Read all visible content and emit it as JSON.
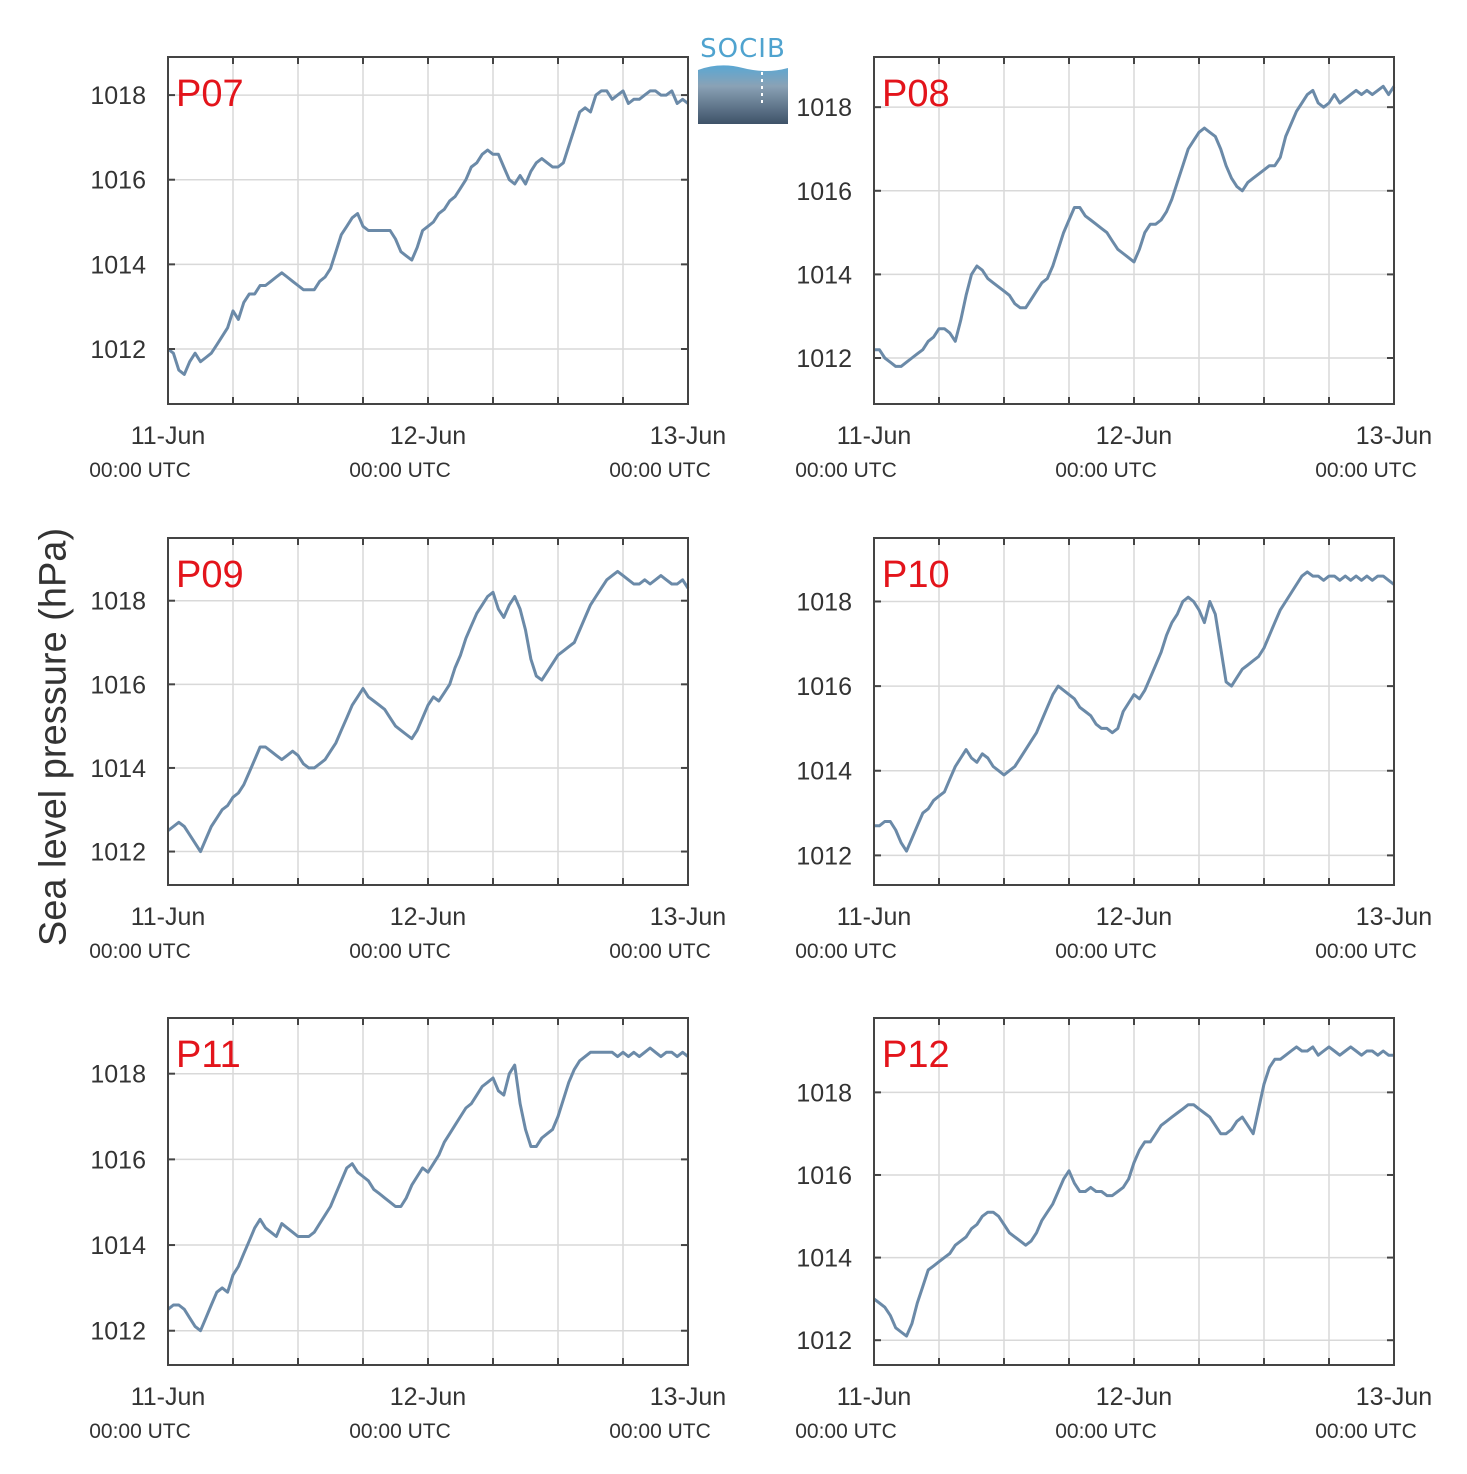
{
  "figure": {
    "ylabel": "Sea level pressure (hPa)",
    "logo_text": "SOCIB"
  },
  "colors": {
    "line": "#6b8aa8",
    "panel_label": "#e3141b",
    "grid": "#d9d9d9",
    "axis": "#444444",
    "tick_text": "#333333"
  },
  "chart_data": [
    {
      "type": "line",
      "label": "P07",
      "xticks": [
        "11-Jun",
        "12-Jun",
        "13-Jun"
      ],
      "xticks_sub": [
        "00:00 UTC",
        "00:00 UTC",
        "00:00 UTC"
      ],
      "xlim": [
        0,
        48
      ],
      "ylim": [
        1010.7,
        1018.9
      ],
      "yticks": [
        1012,
        1014,
        1016,
        1018
      ],
      "x": [
        0,
        0.5,
        1,
        1.5,
        2,
        2.5,
        3,
        3.5,
        4,
        4.5,
        5,
        5.5,
        6,
        6.5,
        7,
        7.5,
        8,
        8.5,
        9,
        9.5,
        10,
        10.5,
        11,
        11.5,
        12,
        12.5,
        13,
        13.5,
        14,
        14.5,
        15,
        15.5,
        16,
        16.5,
        17,
        17.5,
        18,
        18.5,
        19,
        19.5,
        20,
        20.5,
        21,
        21.5,
        22,
        22.5,
        23,
        23.5,
        24,
        24.5,
        25,
        25.5,
        26,
        26.5,
        27,
        27.5,
        28,
        28.5,
        29,
        29.5,
        30,
        30.5,
        31,
        31.5,
        32,
        32.5,
        33,
        33.5,
        34,
        34.5,
        35,
        35.5,
        36,
        36.5,
        37,
        37.5,
        38,
        38.5,
        39,
        39.5,
        40,
        40.5,
        41,
        41.5,
        42,
        42.5,
        43,
        43.5,
        44,
        44.5,
        45,
        45.5,
        46,
        46.5,
        47,
        47.5,
        48
      ],
      "y": [
        1012.0,
        1011.9,
        1011.5,
        1011.4,
        1011.7,
        1011.9,
        1011.7,
        1011.8,
        1011.9,
        1012.1,
        1012.3,
        1012.5,
        1012.9,
        1012.7,
        1013.1,
        1013.3,
        1013.3,
        1013.5,
        1013.5,
        1013.6,
        1013.7,
        1013.8,
        1013.7,
        1013.6,
        1013.5,
        1013.4,
        1013.4,
        1013.4,
        1013.6,
        1013.7,
        1013.9,
        1014.3,
        1014.7,
        1014.9,
        1015.1,
        1015.2,
        1014.9,
        1014.8,
        1014.8,
        1014.8,
        1014.8,
        1014.8,
        1014.6,
        1014.3,
        1014.2,
        1014.1,
        1014.4,
        1014.8,
        1014.9,
        1015.0,
        1015.2,
        1015.3,
        1015.5,
        1015.6,
        1015.8,
        1016.0,
        1016.3,
        1016.4,
        1016.6,
        1016.7,
        1016.6,
        1016.6,
        1016.3,
        1016.0,
        1015.9,
        1016.1,
        1015.9,
        1016.2,
        1016.4,
        1016.5,
        1016.4,
        1016.3,
        1016.3,
        1016.4,
        1016.8,
        1017.2,
        1017.6,
        1017.7,
        1017.6,
        1018.0,
        1018.1,
        1018.1,
        1017.9,
        1018.0,
        1018.1,
        1017.8,
        1017.9,
        1017.9,
        1018.0,
        1018.1,
        1018.1,
        1018.0,
        1018.0,
        1018.1,
        1017.8,
        1017.9,
        1017.8
      ]
    },
    {
      "type": "line",
      "label": "P08",
      "xticks": [
        "11-Jun",
        "12-Jun",
        "13-Jun"
      ],
      "xticks_sub": [
        "00:00 UTC",
        "00:00 UTC",
        "00:00 UTC"
      ],
      "xlim": [
        0,
        48
      ],
      "ylim": [
        1010.9,
        1019.2
      ],
      "yticks": [
        1012,
        1014,
        1016,
        1018
      ],
      "x": [
        0,
        0.5,
        1,
        1.5,
        2,
        2.5,
        3,
        3.5,
        4,
        4.5,
        5,
        5.5,
        6,
        6.5,
        7,
        7.5,
        8,
        8.5,
        9,
        9.5,
        10,
        10.5,
        11,
        11.5,
        12,
        12.5,
        13,
        13.5,
        14,
        14.5,
        15,
        15.5,
        16,
        16.5,
        17,
        17.5,
        18,
        18.5,
        19,
        19.5,
        20,
        20.5,
        21,
        21.5,
        22,
        22.5,
        23,
        23.5,
        24,
        24.5,
        25,
        25.5,
        26,
        26.5,
        27,
        27.5,
        28,
        28.5,
        29,
        29.5,
        30,
        30.5,
        31,
        31.5,
        32,
        32.5,
        33,
        33.5,
        34,
        34.5,
        35,
        35.5,
        36,
        36.5,
        37,
        37.5,
        38,
        38.5,
        39,
        39.5,
        40,
        40.5,
        41,
        41.5,
        42,
        42.5,
        43,
        43.5,
        44,
        44.5,
        45,
        45.5,
        46,
        46.5,
        47,
        47.5,
        48
      ],
      "y": [
        1012.2,
        1012.2,
        1012.0,
        1011.9,
        1011.8,
        1011.8,
        1011.9,
        1012.0,
        1012.1,
        1012.2,
        1012.4,
        1012.5,
        1012.7,
        1012.7,
        1012.6,
        1012.4,
        1012.9,
        1013.5,
        1014.0,
        1014.2,
        1014.1,
        1013.9,
        1013.8,
        1013.7,
        1013.6,
        1013.5,
        1013.3,
        1013.2,
        1013.2,
        1013.4,
        1013.6,
        1013.8,
        1013.9,
        1014.2,
        1014.6,
        1015.0,
        1015.3,
        1015.6,
        1015.6,
        1015.4,
        1015.3,
        1015.2,
        1015.1,
        1015.0,
        1014.8,
        1014.6,
        1014.5,
        1014.4,
        1014.3,
        1014.6,
        1015.0,
        1015.2,
        1015.2,
        1015.3,
        1015.5,
        1015.8,
        1016.2,
        1016.6,
        1017.0,
        1017.2,
        1017.4,
        1017.5,
        1017.4,
        1017.3,
        1017.0,
        1016.6,
        1016.3,
        1016.1,
        1016.0,
        1016.2,
        1016.3,
        1016.4,
        1016.5,
        1016.6,
        1016.6,
        1016.8,
        1017.3,
        1017.6,
        1017.9,
        1018.1,
        1018.3,
        1018.4,
        1018.1,
        1018.0,
        1018.1,
        1018.3,
        1018.1,
        1018.2,
        1018.3,
        1018.4,
        1018.3,
        1018.4,
        1018.3,
        1018.4,
        1018.5,
        1018.3,
        1018.5
      ]
    },
    {
      "type": "line",
      "label": "P09",
      "xticks": [
        "11-Jun",
        "12-Jun",
        "13-Jun"
      ],
      "xticks_sub": [
        "00:00 UTC",
        "00:00 UTC",
        "00:00 UTC"
      ],
      "xlim": [
        0,
        48
      ],
      "ylim": [
        1011.2,
        1019.5
      ],
      "yticks": [
        1012,
        1014,
        1016,
        1018
      ],
      "x": [
        0,
        0.5,
        1,
        1.5,
        2,
        2.5,
        3,
        3.5,
        4,
        4.5,
        5,
        5.5,
        6,
        6.5,
        7,
        7.5,
        8,
        8.5,
        9,
        9.5,
        10,
        10.5,
        11,
        11.5,
        12,
        12.5,
        13,
        13.5,
        14,
        14.5,
        15,
        15.5,
        16,
        16.5,
        17,
        17.5,
        18,
        18.5,
        19,
        19.5,
        20,
        20.5,
        21,
        21.5,
        22,
        22.5,
        23,
        23.5,
        24,
        24.5,
        25,
        25.5,
        26,
        26.5,
        27,
        27.5,
        28,
        28.5,
        29,
        29.5,
        30,
        30.5,
        31,
        31.5,
        32,
        32.5,
        33,
        33.5,
        34,
        34.5,
        35,
        35.5,
        36,
        36.5,
        37,
        37.5,
        38,
        38.5,
        39,
        39.5,
        40,
        40.5,
        41,
        41.5,
        42,
        42.5,
        43,
        43.5,
        44,
        44.5,
        45,
        45.5,
        46,
        46.5,
        47,
        47.5,
        48
      ],
      "y": [
        1012.5,
        1012.6,
        1012.7,
        1012.6,
        1012.4,
        1012.2,
        1012.0,
        1012.3,
        1012.6,
        1012.8,
        1013.0,
        1013.1,
        1013.3,
        1013.4,
        1013.6,
        1013.9,
        1014.2,
        1014.5,
        1014.5,
        1014.4,
        1014.3,
        1014.2,
        1014.3,
        1014.4,
        1014.3,
        1014.1,
        1014.0,
        1014.0,
        1014.1,
        1014.2,
        1014.4,
        1014.6,
        1014.9,
        1015.2,
        1015.5,
        1015.7,
        1015.9,
        1015.7,
        1015.6,
        1015.5,
        1015.4,
        1015.2,
        1015.0,
        1014.9,
        1014.8,
        1014.7,
        1014.9,
        1015.2,
        1015.5,
        1015.7,
        1015.6,
        1015.8,
        1016.0,
        1016.4,
        1016.7,
        1017.1,
        1017.4,
        1017.7,
        1017.9,
        1018.1,
        1018.2,
        1017.8,
        1017.6,
        1017.9,
        1018.1,
        1017.8,
        1017.3,
        1016.6,
        1016.2,
        1016.1,
        1016.3,
        1016.5,
        1016.7,
        1016.8,
        1016.9,
        1017.0,
        1017.3,
        1017.6,
        1017.9,
        1018.1,
        1018.3,
        1018.5,
        1018.6,
        1018.7,
        1018.6,
        1018.5,
        1018.4,
        1018.4,
        1018.5,
        1018.4,
        1018.5,
        1018.6,
        1018.5,
        1018.4,
        1018.4,
        1018.5,
        1018.3
      ]
    },
    {
      "type": "line",
      "label": "P10",
      "xticks": [
        "11-Jun",
        "12-Jun",
        "13-Jun"
      ],
      "xticks_sub": [
        "00:00 UTC",
        "00:00 UTC",
        "00:00 UTC"
      ],
      "xlim": [
        0,
        48
      ],
      "ylim": [
        1011.3,
        1019.5
      ],
      "yticks": [
        1012,
        1014,
        1016,
        1018
      ],
      "x": [
        0,
        0.5,
        1,
        1.5,
        2,
        2.5,
        3,
        3.5,
        4,
        4.5,
        5,
        5.5,
        6,
        6.5,
        7,
        7.5,
        8,
        8.5,
        9,
        9.5,
        10,
        10.5,
        11,
        11.5,
        12,
        12.5,
        13,
        13.5,
        14,
        14.5,
        15,
        15.5,
        16,
        16.5,
        17,
        17.5,
        18,
        18.5,
        19,
        19.5,
        20,
        20.5,
        21,
        21.5,
        22,
        22.5,
        23,
        23.5,
        24,
        24.5,
        25,
        25.5,
        26,
        26.5,
        27,
        27.5,
        28,
        28.5,
        29,
        29.5,
        30,
        30.5,
        31,
        31.5,
        32,
        32.5,
        33,
        33.5,
        34,
        34.5,
        35,
        35.5,
        36,
        36.5,
        37,
        37.5,
        38,
        38.5,
        39,
        39.5,
        40,
        40.5,
        41,
        41.5,
        42,
        42.5,
        43,
        43.5,
        44,
        44.5,
        45,
        45.5,
        46,
        46.5,
        47,
        47.5,
        48
      ],
      "y": [
        1012.7,
        1012.7,
        1012.8,
        1012.8,
        1012.6,
        1012.3,
        1012.1,
        1012.4,
        1012.7,
        1013.0,
        1013.1,
        1013.3,
        1013.4,
        1013.5,
        1013.8,
        1014.1,
        1014.3,
        1014.5,
        1014.3,
        1014.2,
        1014.4,
        1014.3,
        1014.1,
        1014.0,
        1013.9,
        1014.0,
        1014.1,
        1014.3,
        1014.5,
        1014.7,
        1014.9,
        1015.2,
        1015.5,
        1015.8,
        1016.0,
        1015.9,
        1015.8,
        1015.7,
        1015.5,
        1015.4,
        1015.3,
        1015.1,
        1015.0,
        1015.0,
        1014.9,
        1015.0,
        1015.4,
        1015.6,
        1015.8,
        1015.7,
        1015.9,
        1016.2,
        1016.5,
        1016.8,
        1017.2,
        1017.5,
        1017.7,
        1018.0,
        1018.1,
        1018.0,
        1017.8,
        1017.5,
        1018.0,
        1017.7,
        1016.9,
        1016.1,
        1016.0,
        1016.2,
        1016.4,
        1016.5,
        1016.6,
        1016.7,
        1016.9,
        1017.2,
        1017.5,
        1017.8,
        1018.0,
        1018.2,
        1018.4,
        1018.6,
        1018.7,
        1018.6,
        1018.6,
        1018.5,
        1018.6,
        1018.6,
        1018.5,
        1018.6,
        1018.5,
        1018.6,
        1018.5,
        1018.6,
        1018.5,
        1018.6,
        1018.6,
        1018.5,
        1018.4
      ]
    },
    {
      "type": "line",
      "label": "P11",
      "xticks": [
        "11-Jun",
        "12-Jun",
        "13-Jun"
      ],
      "xticks_sub": [
        "00:00 UTC",
        "00:00 UTC",
        "00:00 UTC"
      ],
      "xlim": [
        0,
        48
      ],
      "ylim": [
        1011.2,
        1019.3
      ],
      "yticks": [
        1012,
        1014,
        1016,
        1018
      ],
      "x": [
        0,
        0.5,
        1,
        1.5,
        2,
        2.5,
        3,
        3.5,
        4,
        4.5,
        5,
        5.5,
        6,
        6.5,
        7,
        7.5,
        8,
        8.5,
        9,
        9.5,
        10,
        10.5,
        11,
        11.5,
        12,
        12.5,
        13,
        13.5,
        14,
        14.5,
        15,
        15.5,
        16,
        16.5,
        17,
        17.5,
        18,
        18.5,
        19,
        19.5,
        20,
        20.5,
        21,
        21.5,
        22,
        22.5,
        23,
        23.5,
        24,
        24.5,
        25,
        25.5,
        26,
        26.5,
        27,
        27.5,
        28,
        28.5,
        29,
        29.5,
        30,
        30.5,
        31,
        31.5,
        32,
        32.5,
        33,
        33.5,
        34,
        34.5,
        35,
        35.5,
        36,
        36.5,
        37,
        37.5,
        38,
        38.5,
        39,
        39.5,
        40,
        40.5,
        41,
        41.5,
        42,
        42.5,
        43,
        43.5,
        44,
        44.5,
        45,
        45.5,
        46,
        46.5,
        47,
        47.5,
        48
      ],
      "y": [
        1012.5,
        1012.6,
        1012.6,
        1012.5,
        1012.3,
        1012.1,
        1012.0,
        1012.3,
        1012.6,
        1012.9,
        1013.0,
        1012.9,
        1013.3,
        1013.5,
        1013.8,
        1014.1,
        1014.4,
        1014.6,
        1014.4,
        1014.3,
        1014.2,
        1014.5,
        1014.4,
        1014.3,
        1014.2,
        1014.2,
        1014.2,
        1014.3,
        1014.5,
        1014.7,
        1014.9,
        1015.2,
        1015.5,
        1015.8,
        1015.9,
        1015.7,
        1015.6,
        1015.5,
        1015.3,
        1015.2,
        1015.1,
        1015.0,
        1014.9,
        1014.9,
        1015.1,
        1015.4,
        1015.6,
        1015.8,
        1015.7,
        1015.9,
        1016.1,
        1016.4,
        1016.6,
        1016.8,
        1017.0,
        1017.2,
        1017.3,
        1017.5,
        1017.7,
        1017.8,
        1017.9,
        1017.6,
        1017.5,
        1018.0,
        1018.2,
        1017.3,
        1016.7,
        1016.3,
        1016.3,
        1016.5,
        1016.6,
        1016.7,
        1017.0,
        1017.4,
        1017.8,
        1018.1,
        1018.3,
        1018.4,
        1018.5,
        1018.5,
        1018.5,
        1018.5,
        1018.5,
        1018.4,
        1018.5,
        1018.4,
        1018.5,
        1018.4,
        1018.5,
        1018.6,
        1018.5,
        1018.4,
        1018.5,
        1018.5,
        1018.4,
        1018.5,
        1018.4
      ]
    },
    {
      "type": "line",
      "label": "P12",
      "xticks": [
        "11-Jun",
        "12-Jun",
        "13-Jun"
      ],
      "xticks_sub": [
        "00:00 UTC",
        "00:00 UTC",
        "00:00 UTC"
      ],
      "xlim": [
        0,
        48
      ],
      "ylim": [
        1011.4,
        1019.8
      ],
      "yticks": [
        1012,
        1014,
        1016,
        1018
      ],
      "x": [
        0,
        0.5,
        1,
        1.5,
        2,
        2.5,
        3,
        3.5,
        4,
        4.5,
        5,
        5.5,
        6,
        6.5,
        7,
        7.5,
        8,
        8.5,
        9,
        9.5,
        10,
        10.5,
        11,
        11.5,
        12,
        12.5,
        13,
        13.5,
        14,
        14.5,
        15,
        15.5,
        16,
        16.5,
        17,
        17.5,
        18,
        18.5,
        19,
        19.5,
        20,
        20.5,
        21,
        21.5,
        22,
        22.5,
        23,
        23.5,
        24,
        24.5,
        25,
        25.5,
        26,
        26.5,
        27,
        27.5,
        28,
        28.5,
        29,
        29.5,
        30,
        30.5,
        31,
        31.5,
        32,
        32.5,
        33,
        33.5,
        34,
        34.5,
        35,
        35.5,
        36,
        36.5,
        37,
        37.5,
        38,
        38.5,
        39,
        39.5,
        40,
        40.5,
        41,
        41.5,
        42,
        42.5,
        43,
        43.5,
        44,
        44.5,
        45,
        45.5,
        46,
        46.5,
        47,
        47.5,
        48
      ],
      "y": [
        1013.0,
        1012.9,
        1012.8,
        1012.6,
        1012.3,
        1012.2,
        1012.1,
        1012.4,
        1012.9,
        1013.3,
        1013.7,
        1013.8,
        1013.9,
        1014.0,
        1014.1,
        1014.3,
        1014.4,
        1014.5,
        1014.7,
        1014.8,
        1015.0,
        1015.1,
        1015.1,
        1015.0,
        1014.8,
        1014.6,
        1014.5,
        1014.4,
        1014.3,
        1014.4,
        1014.6,
        1014.9,
        1015.1,
        1015.3,
        1015.6,
        1015.9,
        1016.1,
        1015.8,
        1015.6,
        1015.6,
        1015.7,
        1015.6,
        1015.6,
        1015.5,
        1015.5,
        1015.6,
        1015.7,
        1015.9,
        1016.3,
        1016.6,
        1016.8,
        1016.8,
        1017.0,
        1017.2,
        1017.3,
        1017.4,
        1017.5,
        1017.6,
        1017.7,
        1017.7,
        1017.6,
        1017.5,
        1017.4,
        1017.2,
        1017.0,
        1017.0,
        1017.1,
        1017.3,
        1017.4,
        1017.2,
        1017.0,
        1017.6,
        1018.2,
        1018.6,
        1018.8,
        1018.8,
        1018.9,
        1019.0,
        1019.1,
        1019.0,
        1019.0,
        1019.1,
        1018.9,
        1019.0,
        1019.1,
        1019.0,
        1018.9,
        1019.0,
        1019.1,
        1019.0,
        1018.9,
        1019.0,
        1019.0,
        1018.9,
        1019.0,
        1018.9,
        1018.9
      ]
    }
  ]
}
